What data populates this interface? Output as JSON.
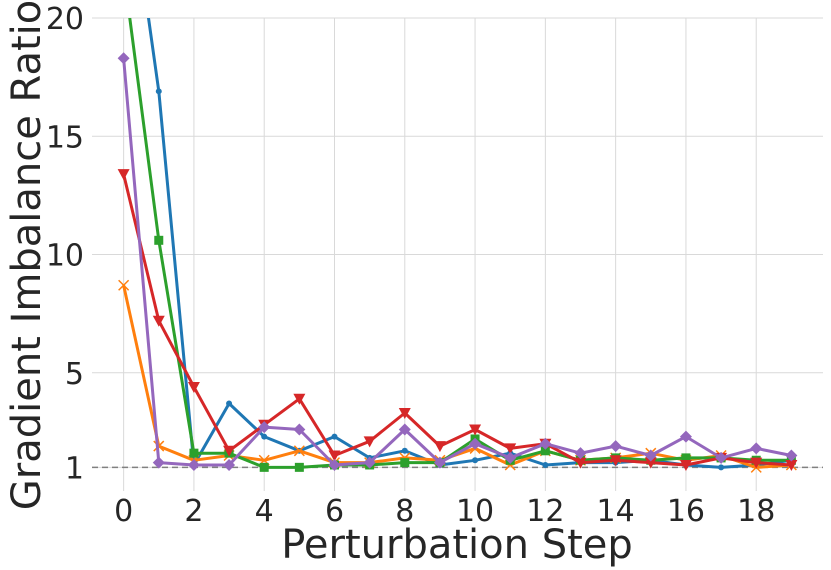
{
  "chart_data": {
    "type": "line",
    "xlabel": "Perturbation Step",
    "ylabel": "Gradient Imbalance Ratio",
    "xlim": [
      -0.9,
      19.9
    ],
    "ylim": [
      0,
      20
    ],
    "xticks": [
      0,
      2,
      4,
      6,
      8,
      10,
      12,
      14,
      16,
      18
    ],
    "xtick_labels": [
      "0",
      "2",
      "4",
      "6",
      "8",
      "10",
      "12",
      "14",
      "16",
      "18"
    ],
    "yticks": [
      1,
      5,
      10,
      15,
      20
    ],
    "ytick_labels": [
      "1",
      "5",
      "10",
      "15",
      "20"
    ],
    "grid": true,
    "reference_line": {
      "y": 1,
      "style": "dashed",
      "color": "#808080"
    },
    "x": [
      0,
      1,
      2,
      3,
      4,
      5,
      6,
      7,
      8,
      9,
      10,
      11,
      12,
      13,
      14,
      15,
      16,
      17,
      18,
      19
    ],
    "series": [
      {
        "color": "#1f77b4",
        "marker": "point",
        "values": [
          27.5,
          16.9,
          1.1,
          3.7,
          2.3,
          1.7,
          2.3,
          1.4,
          1.7,
          1.1,
          1.3,
          1.6,
          1.1,
          1.2,
          1.2,
          1.3,
          1.1,
          1.0,
          1.1,
          1.3
        ]
      },
      {
        "color": "#ff7f0e",
        "marker": "x",
        "values": [
          8.7,
          1.9,
          1.3,
          1.5,
          1.3,
          1.7,
          1.2,
          1.2,
          1.4,
          1.3,
          1.8,
          1.1,
          1.7,
          1.3,
          1.4,
          1.6,
          1.3,
          1.5,
          1.0,
          1.1
        ]
      },
      {
        "color": "#2ca02c",
        "marker": "square",
        "values": [
          22.0,
          10.6,
          1.6,
          1.6,
          1.0,
          1.0,
          1.1,
          1.1,
          1.2,
          1.2,
          2.2,
          1.3,
          1.7,
          1.3,
          1.4,
          1.3,
          1.4,
          1.4,
          1.3,
          1.3
        ]
      },
      {
        "color": "#d62728",
        "marker": "triangle-down",
        "values": [
          13.4,
          7.2,
          4.4,
          1.7,
          2.8,
          3.9,
          1.5,
          2.1,
          3.3,
          1.9,
          2.6,
          1.8,
          2.0,
          1.2,
          1.3,
          1.2,
          1.1,
          1.4,
          1.2,
          1.1
        ]
      },
      {
        "color": "#9467bd",
        "marker": "diamond",
        "values": [
          18.3,
          1.2,
          1.1,
          1.1,
          2.7,
          2.6,
          1.1,
          1.2,
          2.6,
          1.2,
          2.0,
          1.4,
          2.0,
          1.6,
          1.9,
          1.5,
          2.3,
          1.4,
          1.8,
          1.5
        ]
      }
    ]
  }
}
